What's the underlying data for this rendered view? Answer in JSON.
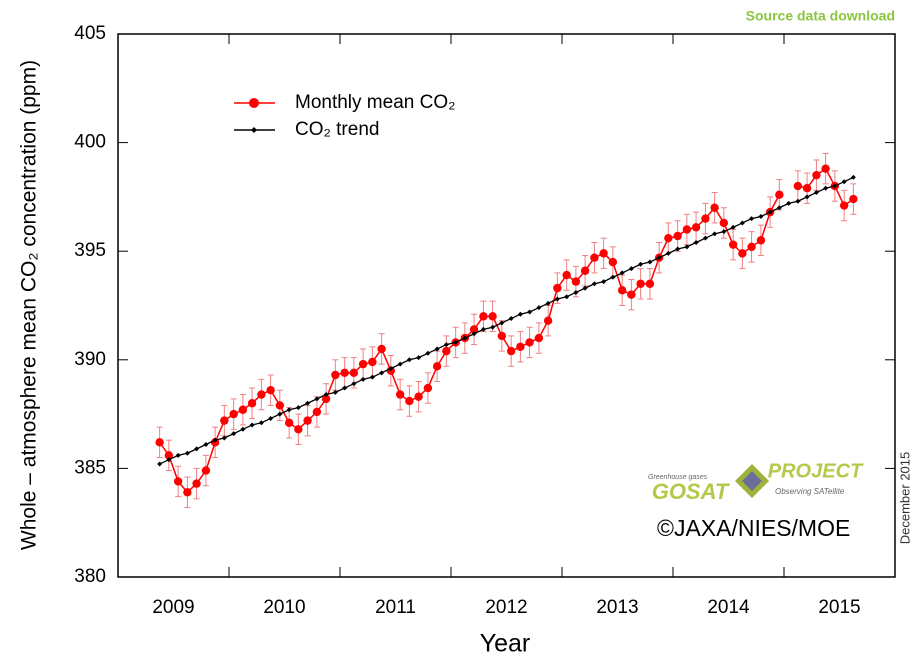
{
  "page": {
    "link": "Source data download",
    "date_note": "December 2015",
    "logo_title": "GOSAT PROJECT",
    "logo_subtitle_top": "Greenhouse gases",
    "logo_subtitle_bottom": "Observing SATellite",
    "copyright": "©JAXA/NIES/MOE"
  },
  "chart_data": {
    "type": "line",
    "xlabel": "Year",
    "ylabel": "Whole – atmosphere mean CO₂ concentration (ppm)",
    "xlim": [
      2009,
      2016
    ],
    "xticks": [
      {
        "value": 2009.5,
        "label": "2009"
      },
      {
        "value": 2010.5,
        "label": "2010"
      },
      {
        "value": 2011.5,
        "label": "2011"
      },
      {
        "value": 2012.5,
        "label": "2012"
      },
      {
        "value": 2013.5,
        "label": "2013"
      },
      {
        "value": 2014.5,
        "label": "2014"
      },
      {
        "value": 2015.5,
        "label": "2015"
      }
    ],
    "year_ticks": [
      2010,
      2011,
      2012,
      2013,
      2014,
      2015
    ],
    "ylim": [
      380,
      405
    ],
    "yticks": [
      380,
      385,
      390,
      395,
      400,
      405
    ],
    "legend": "upper left",
    "x": [
      2009.375,
      2009.458,
      2009.542,
      2009.625,
      2009.708,
      2009.792,
      2009.875,
      2009.958,
      2010.042,
      2010.125,
      2010.208,
      2010.292,
      2010.375,
      2010.458,
      2010.542,
      2010.625,
      2010.708,
      2010.792,
      2010.875,
      2010.958,
      2011.042,
      2011.125,
      2011.208,
      2011.292,
      2011.375,
      2011.458,
      2011.542,
      2011.625,
      2011.708,
      2011.792,
      2011.875,
      2011.958,
      2012.042,
      2012.125,
      2012.208,
      2012.292,
      2012.375,
      2012.458,
      2012.542,
      2012.625,
      2012.708,
      2012.792,
      2012.875,
      2012.958,
      2013.042,
      2013.125,
      2013.208,
      2013.292,
      2013.375,
      2013.458,
      2013.542,
      2013.625,
      2013.708,
      2013.792,
      2013.875,
      2013.958,
      2014.042,
      2014.125,
      2014.208,
      2014.292,
      2014.375,
      2014.458,
      2014.542,
      2014.625,
      2014.708,
      2014.792,
      2014.875,
      2014.958,
      2015.042,
      2015.125,
      2015.208,
      2015.292,
      2015.375,
      2015.458,
      2015.542,
      2015.625
    ],
    "series": [
      {
        "name": "Monthly mean CO₂",
        "color": "#ff0000",
        "marker": "circle",
        "error": 0.7,
        "values": [
          386.2,
          385.6,
          384.4,
          383.9,
          384.3,
          384.9,
          386.2,
          387.2,
          387.5,
          387.7,
          388.0,
          388.4,
          388.6,
          387.9,
          387.1,
          386.8,
          387.2,
          387.6,
          388.2,
          389.3,
          389.4,
          389.4,
          389.8,
          389.9,
          390.5,
          389.5,
          388.4,
          388.1,
          388.3,
          388.7,
          389.7,
          390.4,
          390.8,
          391.0,
          391.4,
          392.0,
          392.0,
          391.1,
          390.4,
          390.6,
          390.8,
          391.0,
          391.8,
          393.3,
          393.9,
          393.6,
          394.1,
          394.7,
          394.9,
          394.5,
          393.2,
          393.0,
          393.5,
          393.5,
          394.7,
          395.6,
          395.7,
          396.0,
          396.1,
          396.5,
          397.0,
          396.3,
          395.3,
          394.9,
          395.2,
          395.5,
          396.8,
          397.6,
          null,
          398.0,
          397.9,
          398.5,
          398.8,
          398.0,
          397.1,
          397.4
        ]
      },
      {
        "name": "CO₂ trend",
        "color": "#000000",
        "marker": "diamond",
        "values": [
          385.2,
          385.4,
          385.6,
          385.7,
          385.9,
          386.1,
          386.3,
          386.4,
          386.6,
          386.8,
          387.0,
          387.1,
          387.3,
          387.5,
          387.7,
          387.8,
          388.0,
          388.2,
          388.4,
          388.5,
          388.7,
          388.9,
          389.1,
          389.2,
          389.4,
          389.6,
          389.8,
          390.0,
          390.1,
          390.3,
          390.5,
          390.7,
          390.8,
          391.0,
          391.2,
          391.4,
          391.5,
          391.7,
          391.9,
          392.1,
          392.2,
          392.4,
          392.6,
          392.8,
          392.9,
          393.1,
          393.3,
          393.5,
          393.6,
          393.8,
          394.0,
          394.2,
          394.4,
          394.5,
          394.7,
          394.9,
          395.1,
          395.2,
          395.4,
          395.6,
          395.8,
          395.9,
          396.1,
          396.3,
          396.5,
          396.6,
          396.8,
          397.0,
          397.2,
          397.3,
          397.5,
          397.7,
          397.9,
          398.0,
          398.2,
          398.4
        ]
      }
    ]
  }
}
